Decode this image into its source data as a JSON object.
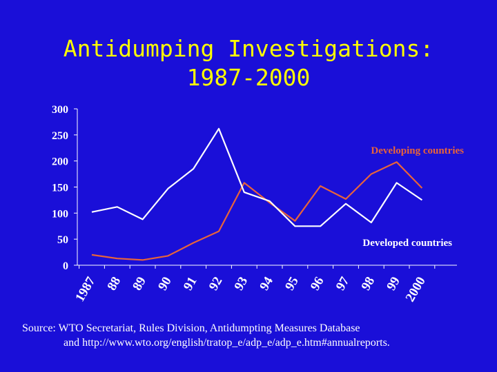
{
  "title": {
    "line1": "Antidumping Investigations:",
    "line2": "1987-2000"
  },
  "source": {
    "line1": "Source: WTO Secretariat, Rules Division, Antidumpting Measures Database",
    "line2": "and http://www.wto.org/english/tratop_e/adp_e/adp_e.htm#annualreports."
  },
  "colors": {
    "background": "#1a0fd8",
    "title": "#ffff00",
    "developing": "#e8643a",
    "developed": "#ffffff",
    "axis": "#ffffff"
  },
  "chart_data": {
    "type": "line",
    "title": "",
    "xlabel": "",
    "ylabel": "",
    "categories": [
      "1987",
      "88",
      "89",
      "90",
      "91",
      "92",
      "93",
      "94",
      "95",
      "96",
      "97",
      "98",
      "99",
      "2000"
    ],
    "yticks": [
      0,
      50,
      100,
      150,
      200,
      250,
      300
    ],
    "ylim": [
      0,
      300
    ],
    "grid": false,
    "series": [
      {
        "name": "Developing countries",
        "color": "#e8643a",
        "values": [
          20,
          13,
          10,
          18,
          43,
          65,
          158,
          120,
          85,
          152,
          127,
          175,
          198,
          148
        ]
      },
      {
        "name": "Developed countries",
        "color": "#ffffff",
        "values": [
          102,
          112,
          88,
          147,
          185,
          262,
          140,
          123,
          75,
          75,
          118,
          82,
          158,
          125
        ]
      }
    ]
  }
}
